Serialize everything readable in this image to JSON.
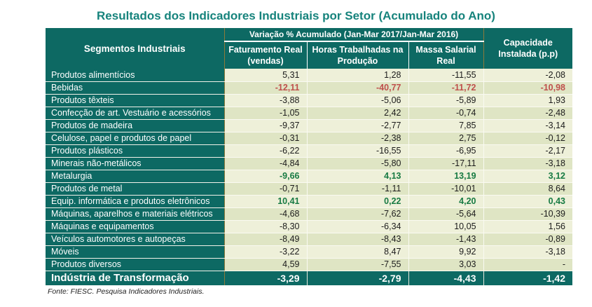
{
  "title": "Resultados dos Indicadores Industriais por Setor (Acumulado do Ano)",
  "table": {
    "col_group_header": "Variação % Acumulado (Jan-Mar 2017/Jan-Mar 2016)",
    "columns": {
      "segments": "Segmentos Industriais",
      "faturamento": "Faturamento Real (vendas)",
      "horas": "Horas Trabalhadas na Produção",
      "massa": "Massa Salarial Real",
      "capacidade": "Capacidade Instalada (p.p)"
    },
    "rows": [
      {
        "label": "Produtos alimentícios",
        "values": [
          "5,31",
          "1,28",
          "-11,55",
          "-2,08"
        ],
        "tone": "default"
      },
      {
        "label": "Bebidas",
        "values": [
          "-12,11",
          "-40,77",
          "-11,72",
          "-10,98"
        ],
        "tone": "red"
      },
      {
        "label": "Produtos têxteis",
        "values": [
          "-3,88",
          "-5,06",
          "-5,89",
          "1,93"
        ],
        "tone": "default"
      },
      {
        "label": "Confecção de art. Vestuário e acessórios",
        "values": [
          "-1,05",
          "2,42",
          "-0,74",
          "-2,48"
        ],
        "tone": "default"
      },
      {
        "label": "Produtos de madeira",
        "values": [
          "-9,37",
          "-2,77",
          "7,85",
          "-3,14"
        ],
        "tone": "default"
      },
      {
        "label": "Celulose, papel e produtos de papel",
        "values": [
          "-0,31",
          "-2,38",
          "2,75",
          "-0,12"
        ],
        "tone": "default"
      },
      {
        "label": "Produtos plásticos",
        "values": [
          "-6,22",
          "-16,55",
          "-6,95",
          "-2,17"
        ],
        "tone": "default"
      },
      {
        "label": "Minerais não-metálicos",
        "values": [
          "-4,84",
          "-5,80",
          "-17,11",
          "-3,18"
        ],
        "tone": "default"
      },
      {
        "label": "Metalurgia",
        "values": [
          "-9,66",
          "4,13",
          "13,19",
          "3,12"
        ],
        "tone": "green"
      },
      {
        "label": "Produtos de metal",
        "values": [
          "-0,71",
          "-1,11",
          "-10,01",
          "8,64"
        ],
        "tone": "default"
      },
      {
        "label": "Equip. informática e produtos eletrônicos",
        "values": [
          "10,41",
          "0,22",
          "4,20",
          "0,43"
        ],
        "tone": "green"
      },
      {
        "label": "Máquinas, aparelhos e materiais elétricos",
        "values": [
          "-4,68",
          "-7,62",
          "-5,64",
          "-10,39"
        ],
        "tone": "default"
      },
      {
        "label": "Máquinas e equipamentos",
        "values": [
          "-8,30",
          "-6,34",
          "10,05",
          "1,56"
        ],
        "tone": "default"
      },
      {
        "label": "Veículos automotores e autopeças",
        "values": [
          "-8,49",
          "-8,43",
          "-1,43",
          "-0,89"
        ],
        "tone": "default"
      },
      {
        "label": "Móveis",
        "values": [
          "-3,22",
          "8,47",
          "9,92",
          "-3,18"
        ],
        "tone": "default"
      },
      {
        "label": "Produtos diversos",
        "values": [
          "4,59",
          "-7,55",
          "3,03",
          "-"
        ],
        "tone": "default"
      }
    ],
    "footer": {
      "label": "Indústria de Transformação",
      "values": [
        "-3,29",
        "-2,79",
        "-4,43",
        "-1,42"
      ]
    }
  },
  "source_note": "Fonte: FIESC. Pesquisa Indicadores Industriais.",
  "colors": {
    "header_teal": "#0d6963",
    "title_teal": "#16837c",
    "row_light": "#eef0d9",
    "row_dark": "#dfe5c4",
    "negative_highlight_red": "#bf4f4b",
    "positive_highlight_green": "#177a43",
    "gold_border": "#8b7a3b"
  },
  "chart_data": {
    "type": "table",
    "title": "Resultados dos Indicadores Industriais por Setor (Acumulado do Ano)",
    "group_header": "Variação % Acumulado (Jan-Mar 2017/Jan-Mar 2016)",
    "columns": [
      "Segmentos Industriais",
      "Faturamento Real (vendas)",
      "Horas Trabalhadas na Produção",
      "Massa Salarial Real",
      "Capacidade Instalada (p.p)"
    ],
    "rows": [
      {
        "segment": "Produtos alimentícios",
        "faturamento_real": 5.31,
        "horas_trabalhadas": 1.28,
        "massa_salarial": -11.55,
        "capacidade_instalada": -2.08
      },
      {
        "segment": "Bebidas",
        "faturamento_real": -12.11,
        "horas_trabalhadas": -40.77,
        "massa_salarial": -11.72,
        "capacidade_instalada": -10.98
      },
      {
        "segment": "Produtos têxteis",
        "faturamento_real": -3.88,
        "horas_trabalhadas": -5.06,
        "massa_salarial": -5.89,
        "capacidade_instalada": 1.93
      },
      {
        "segment": "Confecção de art. Vestuário e acessórios",
        "faturamento_real": -1.05,
        "horas_trabalhadas": 2.42,
        "massa_salarial": -0.74,
        "capacidade_instalada": -2.48
      },
      {
        "segment": "Produtos de madeira",
        "faturamento_real": -9.37,
        "horas_trabalhadas": -2.77,
        "massa_salarial": 7.85,
        "capacidade_instalada": -3.14
      },
      {
        "segment": "Celulose, papel e produtos de papel",
        "faturamento_real": -0.31,
        "horas_trabalhadas": -2.38,
        "massa_salarial": 2.75,
        "capacidade_instalada": -0.12
      },
      {
        "segment": "Produtos plásticos",
        "faturamento_real": -6.22,
        "horas_trabalhadas": -16.55,
        "massa_salarial": -6.95,
        "capacidade_instalada": -2.17
      },
      {
        "segment": "Minerais não-metálicos",
        "faturamento_real": -4.84,
        "horas_trabalhadas": -5.8,
        "massa_salarial": -17.11,
        "capacidade_instalada": -3.18
      },
      {
        "segment": "Metalurgia",
        "faturamento_real": -9.66,
        "horas_trabalhadas": 4.13,
        "massa_salarial": 13.19,
        "capacidade_instalada": 3.12
      },
      {
        "segment": "Produtos de metal",
        "faturamento_real": -0.71,
        "horas_trabalhadas": -1.11,
        "massa_salarial": -10.01,
        "capacidade_instalada": 8.64
      },
      {
        "segment": "Equip. informática e produtos eletrônicos",
        "faturamento_real": 10.41,
        "horas_trabalhadas": 0.22,
        "massa_salarial": 4.2,
        "capacidade_instalada": 0.43
      },
      {
        "segment": "Máquinas, aparelhos e materiais elétricos",
        "faturamento_real": -4.68,
        "horas_trabalhadas": -7.62,
        "massa_salarial": -5.64,
        "capacidade_instalada": -10.39
      },
      {
        "segment": "Máquinas e equipamentos",
        "faturamento_real": -8.3,
        "horas_trabalhadas": -6.34,
        "massa_salarial": 10.05,
        "capacidade_instalada": 1.56
      },
      {
        "segment": "Veículos automotores e autopeças",
        "faturamento_real": -8.49,
        "horas_trabalhadas": -8.43,
        "massa_salarial": -1.43,
        "capacidade_instalada": -0.89
      },
      {
        "segment": "Móveis",
        "faturamento_real": -3.22,
        "horas_trabalhadas": 8.47,
        "massa_salarial": 9.92,
        "capacidade_instalada": -3.18
      },
      {
        "segment": "Produtos diversos",
        "faturamento_real": 4.59,
        "horas_trabalhadas": -7.55,
        "massa_salarial": 3.03,
        "capacidade_instalada": null
      },
      {
        "segment": "Indústria de Transformação",
        "faturamento_real": -3.29,
        "horas_trabalhadas": -2.79,
        "massa_salarial": -4.43,
        "capacidade_instalada": -1.42
      }
    ]
  }
}
